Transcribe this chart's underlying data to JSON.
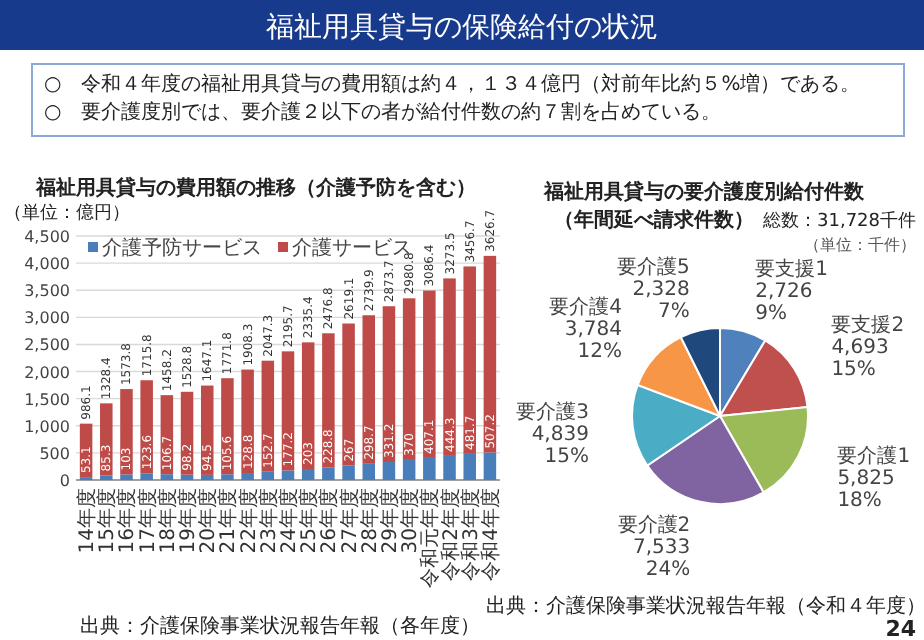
{
  "chart_data": [
    {
      "type": "other",
      "title": "福祉用具貸与の保険給付の状況",
      "annotations": [
        "○　令和４年度の福祉用具貸与の費用額は約４，１３４億円（対前年比約５%増）である。",
        "○　要介護度別では、要介護２以下の者が給付件数の約７割を占めている。",
        "24"
      ]
    },
    {
      "type": "bar",
      "title": "福祉用具貸与の費用額の推移（介護予防を含む）",
      "ylabel": "（単位：億円）",
      "stacked": true,
      "grid": "y",
      "legend": "top",
      "data_labels": true,
      "categories": [
        "14年度",
        "15年度",
        "16年度",
        "17年度",
        "18年度",
        "19年度",
        "20年度",
        "21年度",
        "22年度",
        "23年度",
        "24年度",
        "25年度",
        "26年度",
        "27年度",
        "28年度",
        "29年度",
        "30年度",
        "令和元年度",
        "令和2年度",
        "令和3年度",
        "令和4年度"
      ],
      "ylim": [
        0,
        4500
      ],
      "yticks": [
        0,
        500,
        {
          "value": 1000,
          "label": "1,000"
        },
        {
          "value": 1500,
          "label": "1,500"
        },
        {
          "value": 2000,
          "label": "2,000"
        },
        {
          "value": 2500,
          "label": "2,500"
        },
        {
          "value": 3000,
          "label": "3,000"
        },
        {
          "value": 3500,
          "label": "3,500"
        },
        {
          "value": 4000,
          "label": "4,000"
        },
        {
          "value": 4500,
          "label": "4,500"
        }
      ],
      "series": [
        {
          "name": "介護予防サービス",
          "color": "#4a7ebb",
          "values": [
            53.1,
            85.3,
            103,
            123.6,
            106.7,
            98.2,
            94.5,
            105.6,
            128.8,
            152.7,
            177.2,
            203,
            228.8,
            267,
            298.7,
            331.2,
            370,
            407.1,
            444.3,
            481.7,
            507.2
          ]
        },
        {
          "name": "介護サービス",
          "color": "#be4b48",
          "values": [
            986.1,
            1328.4,
            1573.8,
            1715.8,
            1458.2,
            1528.8,
            1647.1,
            1771.8,
            1908.3,
            2047.3,
            2195.7,
            2335.4,
            2476.8,
            2619.1,
            2739.9,
            2873.7,
            2980.8,
            3086.4,
            3273.5,
            3456.7,
            3626.7
          ]
        }
      ],
      "annotations": [
        "出典：介護保険事業状況報告年報（各年度）"
      ]
    },
    {
      "type": "pie",
      "title": "福祉用具貸与の要介護度別給付件数",
      "subtitle": "（年間延べ請求件数）",
      "categories": [
        "要支援1",
        "要支援2",
        "要介護1",
        "要介護2",
        "要介護3",
        "要介護4",
        "要介護5"
      ],
      "values": [
        2726,
        4693,
        5825,
        7533,
        4839,
        3784,
        2328
      ],
      "value_labels": [
        "2,726\n9%",
        "4,693\n15%",
        "5,825\n18%",
        "7,533\n24%",
        "4,839\n15%",
        "3,784\n12%",
        "2,328\n7%"
      ],
      "colors": [
        "#4f81bd",
        "#c0504d",
        "#9bbb59",
        "#8064a2",
        "#4bacc6",
        "#f79646",
        "#1f497d"
      ],
      "annotations": [
        "総数：31,728千件",
        "（単位：千件）",
        "出典：介護保険事業状況報告年報（令和４年度）"
      ]
    }
  ]
}
